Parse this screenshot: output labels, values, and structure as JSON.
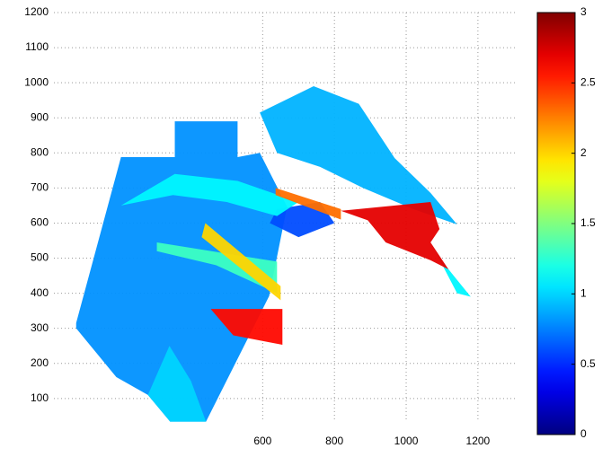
{
  "chart_data": {
    "type": "heatmap",
    "colormap": "jet",
    "xlim": [
      18,
      1308
    ],
    "ylim": [
      33,
      1200
    ],
    "xticks": [
      600,
      800,
      1000,
      1200
    ],
    "yticks": [
      100,
      200,
      300,
      400,
      500,
      600,
      700,
      800,
      900,
      1000,
      1100,
      1200
    ],
    "grid": true,
    "clim": [
      0,
      3
    ],
    "cticks": [
      0,
      0.5,
      1,
      1.5,
      2,
      2.5,
      3
    ],
    "regions": [
      {
        "value": 0.8,
        "points": [
          [
            80,
            315
          ],
          [
            205,
            788
          ],
          [
            355,
            788
          ],
          [
            355,
            890
          ],
          [
            530,
            890
          ],
          [
            530,
            788
          ],
          [
            592,
            800
          ],
          [
            668,
            647
          ],
          [
            618,
            392
          ],
          [
            442,
            34
          ],
          [
            342,
            34
          ],
          [
            280,
            110
          ],
          [
            192,
            161
          ],
          [
            80,
            300
          ]
        ]
      },
      {
        "value": 0.9,
        "points": [
          [
            592,
            915
          ],
          [
            742,
            990
          ],
          [
            868,
            940
          ],
          [
            968,
            785
          ],
          [
            1068,
            686
          ],
          [
            1142,
            596
          ],
          [
            1020,
            640
          ],
          [
            880,
            700
          ],
          [
            760,
            760
          ],
          [
            640,
            800
          ]
        ]
      },
      {
        "value": 0.6,
        "points": [
          [
            640,
            640
          ],
          [
            760,
            660
          ],
          [
            800,
            600
          ],
          [
            700,
            560
          ],
          [
            620,
            600
          ]
        ]
      },
      {
        "value": 1.1,
        "points": [
          [
            205,
            650
          ],
          [
            355,
            740
          ],
          [
            530,
            720
          ],
          [
            700,
            660
          ],
          [
            640,
            620
          ],
          [
            500,
            660
          ],
          [
            350,
            680
          ]
        ]
      },
      {
        "value": 1.3,
        "points": [
          [
            305,
            545
          ],
          [
            640,
            490
          ],
          [
            640,
            400
          ],
          [
            470,
            480
          ],
          [
            305,
            520
          ]
        ]
      },
      {
        "value": 1.0,
        "points": [
          [
            280,
            110
          ],
          [
            342,
            34
          ],
          [
            442,
            34
          ],
          [
            400,
            150
          ],
          [
            340,
            250
          ]
        ]
      },
      {
        "value": 2.0,
        "points": [
          [
            440,
            600
          ],
          [
            650,
            420
          ],
          [
            650,
            380
          ],
          [
            430,
            560
          ]
        ]
      },
      {
        "value": 1.1,
        "points": [
          [
            1068,
            545
          ],
          [
            1142,
            400
          ],
          [
            1180,
            390
          ],
          [
            1093,
            500
          ]
        ]
      },
      {
        "value": 2.3,
        "points": [
          [
            636,
            700
          ],
          [
            818,
            640
          ],
          [
            818,
            610
          ],
          [
            636,
            680
          ]
        ]
      },
      {
        "value": 2.6,
        "points": [
          [
            455,
            355
          ],
          [
            655,
            355
          ],
          [
            655,
            253
          ],
          [
            518,
            280
          ]
        ]
      },
      {
        "value": 2.7,
        "points": [
          [
            818,
            635
          ],
          [
            1068,
            660
          ],
          [
            1093,
            583
          ],
          [
            1068,
            545
          ],
          [
            1118,
            468
          ],
          [
            1068,
            494
          ],
          [
            943,
            545
          ],
          [
            893,
            608
          ]
        ]
      }
    ]
  }
}
